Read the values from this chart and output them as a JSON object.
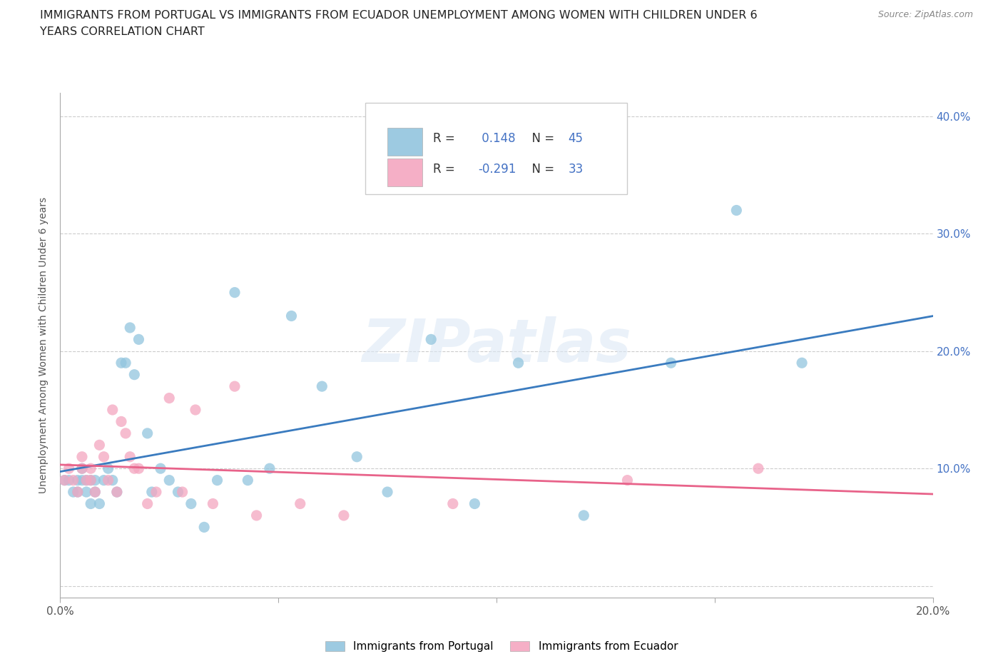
{
  "title_line1": "IMMIGRANTS FROM PORTUGAL VS IMMIGRANTS FROM ECUADOR UNEMPLOYMENT AMONG WOMEN WITH CHILDREN UNDER 6",
  "title_line2": "YEARS CORRELATION CHART",
  "source": "Source: ZipAtlas.com",
  "ylabel": "Unemployment Among Women with Children Under 6 years",
  "xlim": [
    0.0,
    0.2
  ],
  "ylim": [
    -0.01,
    0.42
  ],
  "xticks": [
    0.0,
    0.05,
    0.1,
    0.15,
    0.2
  ],
  "xticklabels": [
    "0.0%",
    "",
    "",
    "",
    "20.0%"
  ],
  "yticks": [
    0.0,
    0.1,
    0.2,
    0.3,
    0.4
  ],
  "yticklabels": [
    "",
    "10.0%",
    "20.0%",
    "30.0%",
    "40.0%"
  ],
  "R_portugal": 0.148,
  "N_portugal": 45,
  "R_ecuador": -0.291,
  "N_ecuador": 33,
  "color_portugal": "#92C5DE",
  "color_ecuador": "#F4A6C0",
  "line_color_portugal": "#3A7BBF",
  "line_color_ecuador": "#E8638A",
  "watermark": "ZIPatlas",
  "portugal_x": [
    0.001,
    0.002,
    0.003,
    0.004,
    0.004,
    0.005,
    0.005,
    0.006,
    0.006,
    0.007,
    0.007,
    0.008,
    0.008,
    0.009,
    0.01,
    0.011,
    0.012,
    0.013,
    0.014,
    0.015,
    0.016,
    0.017,
    0.018,
    0.02,
    0.021,
    0.023,
    0.025,
    0.027,
    0.03,
    0.033,
    0.036,
    0.04,
    0.043,
    0.048,
    0.053,
    0.06,
    0.068,
    0.075,
    0.085,
    0.095,
    0.105,
    0.12,
    0.14,
    0.155,
    0.17
  ],
  "portugal_y": [
    0.09,
    0.09,
    0.08,
    0.08,
    0.09,
    0.09,
    0.1,
    0.08,
    0.09,
    0.09,
    0.07,
    0.08,
    0.09,
    0.07,
    0.09,
    0.1,
    0.09,
    0.08,
    0.19,
    0.19,
    0.22,
    0.18,
    0.21,
    0.13,
    0.08,
    0.1,
    0.09,
    0.08,
    0.07,
    0.05,
    0.09,
    0.25,
    0.09,
    0.1,
    0.23,
    0.17,
    0.11,
    0.08,
    0.21,
    0.07,
    0.19,
    0.06,
    0.19,
    0.32,
    0.19
  ],
  "ecuador_x": [
    0.001,
    0.002,
    0.003,
    0.004,
    0.005,
    0.005,
    0.006,
    0.007,
    0.007,
    0.008,
    0.009,
    0.01,
    0.011,
    0.012,
    0.013,
    0.014,
    0.015,
    0.016,
    0.017,
    0.018,
    0.02,
    0.022,
    0.025,
    0.028,
    0.031,
    0.035,
    0.04,
    0.045,
    0.055,
    0.065,
    0.09,
    0.13,
    0.16
  ],
  "ecuador_y": [
    0.09,
    0.1,
    0.09,
    0.08,
    0.1,
    0.11,
    0.09,
    0.1,
    0.09,
    0.08,
    0.12,
    0.11,
    0.09,
    0.15,
    0.08,
    0.14,
    0.13,
    0.11,
    0.1,
    0.1,
    0.07,
    0.08,
    0.16,
    0.08,
    0.15,
    0.07,
    0.17,
    0.06,
    0.07,
    0.06,
    0.07,
    0.09,
    0.1
  ],
  "background_color": "#ffffff",
  "grid_color": "#cccccc"
}
